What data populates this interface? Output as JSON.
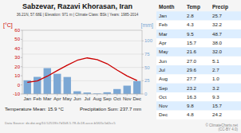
{
  "chart_data": {
    "type": "bar",
    "title": "Sabzevar, Razavi Khorasan, Iran",
    "subtitle": "36.21N, 57.68E  |  Elevation: 971 m  |  Climate Class: BSk  |  Years: 1985-2014",
    "categories": [
      "Jan",
      "Feb",
      "Mar",
      "Apr",
      "May",
      "Jun",
      "Jul",
      "Aug",
      "Sep",
      "Oct",
      "Nov",
      "Dec"
    ],
    "series": [
      {
        "type": "bar",
        "color": "#7ba7d4",
        "axis": "y2",
        "values": [
          25.7,
          32.2,
          48.7,
          38.0,
          32.0,
          5.1,
          2.7,
          1.0,
          3.2,
          9.3,
          15.7,
          24.2
        ]
      },
      {
        "type": "line",
        "color": "#cc0000",
        "values": [
          2.8,
          4.3,
          9.5,
          15.7,
          21.6,
          27.0,
          29.6,
          27.7,
          23.2,
          16.3,
          9.8,
          4.8
        ]
      }
    ],
    "ylim": [
      -10,
      60
    ],
    "yticks": [
      -10,
      0,
      10,
      20,
      30,
      40,
      50,
      60
    ],
    "y2lim": [
      0,
      120
    ],
    "y2ticks": [
      0,
      25,
      50,
      75,
      100
    ],
    "y_label": "[°C]",
    "y2_label": "[mm]",
    "grid": true,
    "annotations": [
      "Temperature Mean: 15.9 °C",
      "Precipitation Sum: 237.7 mm",
      "Data Source: dx.doi.org/10.52519/c7d1k8-5.78-4c18-acce-b5f05c5d2cc5",
      "© ClimateCharts.net\n(CC-BY 4.0)"
    ],
    "table": {
      "headers": [
        "Month",
        "Temp",
        "Precip"
      ],
      "rows": [
        [
          "Jan",
          "2.8",
          "25.7"
        ],
        [
          "Feb",
          "4.3",
          "32.2"
        ],
        [
          "Mar",
          "9.5",
          "48.7"
        ],
        [
          "Apr",
          "15.7",
          "38.0"
        ],
        [
          "May",
          "21.6",
          "32.0"
        ],
        [
          "Jun",
          "27.0",
          "5.1"
        ],
        [
          "Jul",
          "29.6",
          "2.7"
        ],
        [
          "Aug",
          "27.7",
          "1.0"
        ],
        [
          "Sep",
          "23.2",
          "3.2"
        ],
        [
          "Oct",
          "16.3",
          "9.3"
        ],
        [
          "Nov",
          "9.8",
          "15.7"
        ],
        [
          "Dec",
          "4.8",
          "24.2"
        ]
      ]
    }
  }
}
